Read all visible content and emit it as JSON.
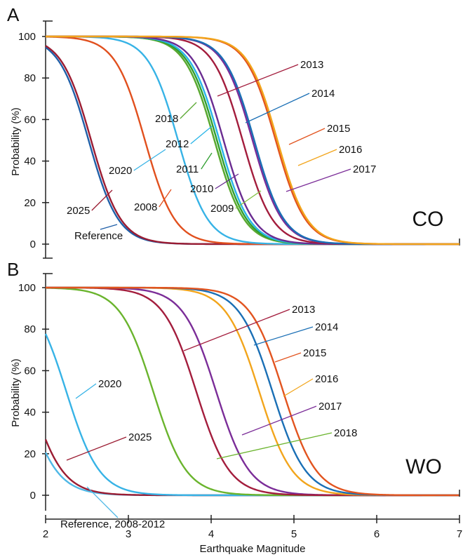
{
  "figure": {
    "xlabel": "Earthquake Magnitude",
    "ylabel": "Probability (%)"
  },
  "chart_data": [
    {
      "type": "line",
      "panel": "A",
      "region_label": "CO",
      "xlabel": "",
      "ylabel": "Probability (%)",
      "xlim": [
        2,
        7
      ],
      "ylim": [
        0,
        100
      ],
      "x_ticks": [
        "2",
        "3",
        "4",
        "5",
        "6",
        "7"
      ],
      "y_ticks": [
        "0",
        "20",
        "40",
        "60",
        "80",
        "100"
      ],
      "grid": false,
      "legend": "none",
      "curve_model": "logistic: P = 100 / (1 + exp((M - M50) / s))",
      "series": [
        {
          "name": "Reference",
          "M50": 2.52,
          "s": 0.18,
          "color": "#1f5fa8"
        },
        {
          "name": "2025",
          "M50": 2.55,
          "s": 0.18,
          "color": "#9b1c32"
        },
        {
          "name": "2008",
          "M50": 3.2,
          "s": 0.18,
          "color": "#e1501e"
        },
        {
          "name": "2020",
          "M50": 3.6,
          "s": 0.18,
          "color": "#37b3e6"
        },
        {
          "name": "2009",
          "M50": 4.04,
          "s": 0.18,
          "color": "#7fbf3f"
        },
        {
          "name": "2018",
          "M50": 4.04,
          "s": 0.18,
          "color": "#5aa832"
        },
        {
          "name": "2011",
          "M50": 4.07,
          "s": 0.18,
          "color": "#2f9e2f"
        },
        {
          "name": "2012",
          "M50": 4.1,
          "s": 0.18,
          "color": "#29b5e8"
        },
        {
          "name": "2010",
          "M50": 4.15,
          "s": 0.18,
          "color": "#6a2c91"
        },
        {
          "name": "2013",
          "M50": 4.38,
          "s": 0.18,
          "color": "#a31d3d"
        },
        {
          "name": "2017",
          "M50": 4.5,
          "s": 0.18,
          "color": "#7b2d98"
        },
        {
          "name": "2014",
          "M50": 4.52,
          "s": 0.18,
          "color": "#1a6fb5"
        },
        {
          "name": "2015",
          "M50": 4.78,
          "s": 0.18,
          "color": "#e2541f"
        },
        {
          "name": "2016",
          "M50": 4.8,
          "s": 0.18,
          "color": "#f2a51c"
        }
      ]
    },
    {
      "type": "line",
      "panel": "B",
      "region_label": "WO",
      "xlabel": "Earthquake Magnitude",
      "ylabel": "Probability (%)",
      "xlim": [
        2,
        7
      ],
      "ylim": [
        0,
        100
      ],
      "x_ticks": [
        "2",
        "3",
        "4",
        "5",
        "6",
        "7"
      ],
      "y_ticks": [
        "0",
        "20",
        "40",
        "60",
        "80",
        "100"
      ],
      "grid": false,
      "legend": "none",
      "curve_model": "logistic: P = 100 / (1 + exp((M - M50) / s))",
      "series": [
        {
          "name": "Reference, 2008-2012",
          "M50": 1.73,
          "s": 0.2,
          "color": "#4fb8e6"
        },
        {
          "name": "2025",
          "M50": 1.8,
          "s": 0.2,
          "color": "#9b1c32"
        },
        {
          "name": "2020",
          "M50": 2.25,
          "s": 0.2,
          "color": "#37b3e6"
        },
        {
          "name": "2018",
          "M50": 3.3,
          "s": 0.2,
          "color": "#6ab42d"
        },
        {
          "name": "2017",
          "M50": 4.06,
          "s": 0.2,
          "color": "#7b2d98"
        },
        {
          "name": "2013",
          "M50": 3.82,
          "s": 0.2,
          "color": "#a31d3d"
        },
        {
          "name": "2016",
          "M50": 4.58,
          "s": 0.2,
          "color": "#f2a51c"
        },
        {
          "name": "2014",
          "M50": 4.74,
          "s": 0.2,
          "color": "#1a6fb5"
        },
        {
          "name": "2015",
          "M50": 4.87,
          "s": 0.2,
          "color": "#e2541f"
        }
      ]
    }
  ]
}
